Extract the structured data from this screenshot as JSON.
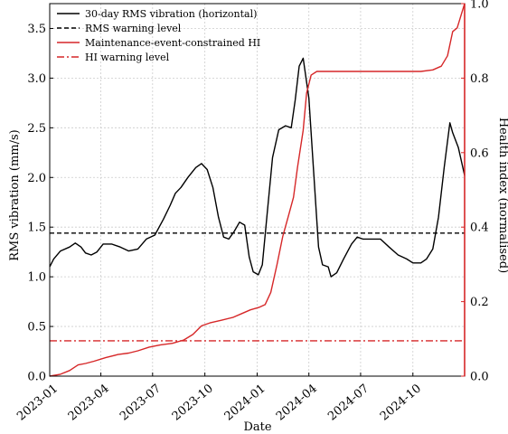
{
  "chart_data": {
    "type": "line",
    "xlabel": "Date",
    "ylabel_left": "RMS vibration (mm/s)",
    "ylabel_right": "Health index (normalised)",
    "xlim": [
      "2023-01-01",
      "2024-12-31"
    ],
    "ylim_left": [
      0.0,
      3.75
    ],
    "ylim_right": [
      0.0,
      1.0
    ],
    "grid": true,
    "legend_position": "top-left",
    "x_ticks": [
      "2023-01",
      "2023-04",
      "2023-07",
      "2023-10",
      "2024-01",
      "2024-04",
      "2024-07",
      "2024-10"
    ],
    "y_ticks_left": [
      "0.0",
      "0.5",
      "1.0",
      "1.5",
      "2.0",
      "2.5",
      "3.0",
      "3.5"
    ],
    "y_ticks_right": [
      "0.0",
      "0.2",
      "0.4",
      "0.6",
      "0.8",
      "1.0"
    ],
    "colors": {
      "rms": "#000000",
      "hi": "#d62728",
      "axis_right": "#d62728"
    },
    "series": [
      {
        "name": "30-day RMS vibration (horizontal)",
        "axis": "left",
        "style": "solid",
        "color": "#000000",
        "points": [
          [
            "2023-01-01",
            1.1
          ],
          [
            "2023-01-08",
            1.18
          ],
          [
            "2023-01-20",
            1.26
          ],
          [
            "2023-02-05",
            1.3
          ],
          [
            "2023-02-15",
            1.34
          ],
          [
            "2023-02-25",
            1.3
          ],
          [
            "2023-03-05",
            1.24
          ],
          [
            "2023-03-15",
            1.22
          ],
          [
            "2023-03-25",
            1.25
          ],
          [
            "2023-04-05",
            1.33
          ],
          [
            "2023-04-20",
            1.33
          ],
          [
            "2023-05-05",
            1.3
          ],
          [
            "2023-05-20",
            1.26
          ],
          [
            "2023-06-05",
            1.28
          ],
          [
            "2023-06-20",
            1.38
          ],
          [
            "2023-07-05",
            1.42
          ],
          [
            "2023-07-20",
            1.58
          ],
          [
            "2023-08-01",
            1.72
          ],
          [
            "2023-08-10",
            1.84
          ],
          [
            "2023-08-20",
            1.9
          ],
          [
            "2023-09-01",
            2.0
          ],
          [
            "2023-09-15",
            2.1
          ],
          [
            "2023-09-25",
            2.14
          ],
          [
            "2023-10-05",
            2.08
          ],
          [
            "2023-10-15",
            1.9
          ],
          [
            "2023-10-25",
            1.6
          ],
          [
            "2023-11-03",
            1.4
          ],
          [
            "2023-11-12",
            1.38
          ],
          [
            "2023-11-22",
            1.46
          ],
          [
            "2023-12-01",
            1.55
          ],
          [
            "2023-12-10",
            1.52
          ],
          [
            "2023-12-18",
            1.2
          ],
          [
            "2023-12-25",
            1.05
          ],
          [
            "2024-01-03",
            1.02
          ],
          [
            "2024-01-10",
            1.12
          ],
          [
            "2024-01-18",
            1.6
          ],
          [
            "2024-01-28",
            2.2
          ],
          [
            "2024-02-08",
            2.48
          ],
          [
            "2024-02-20",
            2.52
          ],
          [
            "2024-03-01",
            2.5
          ],
          [
            "2024-03-08",
            2.78
          ],
          [
            "2024-03-15",
            3.12
          ],
          [
            "2024-03-22",
            3.2
          ],
          [
            "2024-04-01",
            2.8
          ],
          [
            "2024-04-10",
            2.0
          ],
          [
            "2024-04-18",
            1.3
          ],
          [
            "2024-04-25",
            1.12
          ],
          [
            "2024-05-05",
            1.1
          ],
          [
            "2024-05-10",
            1.0
          ],
          [
            "2024-05-20",
            1.04
          ],
          [
            "2024-06-01",
            1.18
          ],
          [
            "2024-06-15",
            1.33
          ],
          [
            "2024-06-25",
            1.4
          ],
          [
            "2024-07-05",
            1.38
          ],
          [
            "2024-07-20",
            1.38
          ],
          [
            "2024-08-05",
            1.38
          ],
          [
            "2024-08-20",
            1.3
          ],
          [
            "2024-09-05",
            1.22
          ],
          [
            "2024-09-20",
            1.18
          ],
          [
            "2024-10-01",
            1.14
          ],
          [
            "2024-10-15",
            1.14
          ],
          [
            "2024-10-25",
            1.18
          ],
          [
            "2024-11-05",
            1.28
          ],
          [
            "2024-11-15",
            1.6
          ],
          [
            "2024-11-25",
            2.1
          ],
          [
            "2024-12-05",
            2.55
          ],
          [
            "2024-12-10",
            2.45
          ],
          [
            "2024-12-20",
            2.3
          ],
          [
            "2024-12-31",
            2.02
          ]
        ]
      },
      {
        "name": "RMS warning level",
        "axis": "left",
        "style": "dashed",
        "color": "#000000",
        "points": [
          [
            "2023-01-01",
            1.44
          ],
          [
            "2024-12-31",
            1.44
          ]
        ]
      },
      {
        "name": "Maintenance-event-constrained HI",
        "axis": "right",
        "style": "solid",
        "color": "#d62728",
        "points": [
          [
            "2023-01-01",
            0.0
          ],
          [
            "2023-01-20",
            0.005
          ],
          [
            "2023-02-05",
            0.015
          ],
          [
            "2023-02-20",
            0.03
          ],
          [
            "2023-03-05",
            0.034
          ],
          [
            "2023-03-20",
            0.04
          ],
          [
            "2023-04-10",
            0.05
          ],
          [
            "2023-05-01",
            0.058
          ],
          [
            "2023-05-20",
            0.062
          ],
          [
            "2023-06-05",
            0.068
          ],
          [
            "2023-06-25",
            0.078
          ],
          [
            "2023-07-15",
            0.084
          ],
          [
            "2023-08-05",
            0.088
          ],
          [
            "2023-08-25",
            0.097
          ],
          [
            "2023-09-10",
            0.112
          ],
          [
            "2023-09-25",
            0.135
          ],
          [
            "2023-10-10",
            0.143
          ],
          [
            "2023-10-30",
            0.15
          ],
          [
            "2023-11-20",
            0.158
          ],
          [
            "2023-12-05",
            0.168
          ],
          [
            "2023-12-20",
            0.178
          ],
          [
            "2024-01-05",
            0.185
          ],
          [
            "2024-01-15",
            0.192
          ],
          [
            "2024-01-25",
            0.225
          ],
          [
            "2024-02-05",
            0.3
          ],
          [
            "2024-02-15",
            0.375
          ],
          [
            "2024-02-25",
            0.43
          ],
          [
            "2024-03-05",
            0.48
          ],
          [
            "2024-03-12",
            0.56
          ],
          [
            "2024-03-22",
            0.66
          ],
          [
            "2024-03-28",
            0.76
          ],
          [
            "2024-04-05",
            0.808
          ],
          [
            "2024-04-15",
            0.818
          ],
          [
            "2024-06-01",
            0.818
          ],
          [
            "2024-08-01",
            0.818
          ],
          [
            "2024-10-15",
            0.818
          ],
          [
            "2024-11-05",
            0.822
          ],
          [
            "2024-11-20",
            0.832
          ],
          [
            "2024-12-01",
            0.86
          ],
          [
            "2024-12-10",
            0.925
          ],
          [
            "2024-12-18",
            0.935
          ],
          [
            "2024-12-31",
            1.0
          ]
        ]
      },
      {
        "name": "HI warning level",
        "axis": "right",
        "style": "dashdot",
        "color": "#d62728",
        "points": [
          [
            "2023-01-01",
            0.095
          ],
          [
            "2024-12-31",
            0.095
          ]
        ]
      }
    ]
  }
}
